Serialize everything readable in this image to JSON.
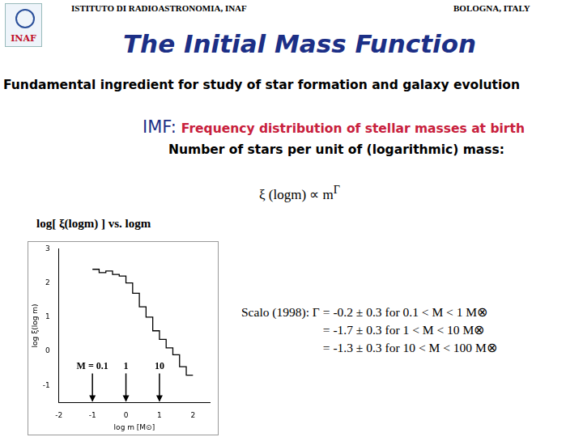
{
  "header": {
    "left": "ISTITUTO DI RADIOASTRONOMIA, INAF",
    "right": "BOLOGNA, ITALY",
    "logo": "INAF"
  },
  "title": "The Initial Mass Function",
  "subtitle": "Fundamental ingredient for study of star formation and galaxy evolution",
  "definition": {
    "term": "IMF:",
    "text": "Frequency distribution of stellar masses at birth",
    "detail": "Number of stars per unit of (logarithmic) mass:"
  },
  "formula": {
    "text": "ξ (logm) ∝ m",
    "superscript": "Γ"
  },
  "plot_caption": "log[ ξ(logm) ] vs. logm",
  "fit": {
    "lead": "Scalo (1998): Γ",
    "rows": [
      [
        "= -0.2 ± 0.3",
        "for 0.1 < M < 1 M⊗"
      ],
      [
        "= -1.7 ± 0.3",
        "for 1 < M < 10 M⊗"
      ],
      [
        "= -1.3 ± 0.3",
        "for 10 < M < 100 M⊗"
      ]
    ]
  },
  "chart_data": {
    "type": "histogram",
    "x_label": "log m [M⊙]",
    "y_label": "log ξ(log m)",
    "bins": [
      -1.0,
      -0.8,
      -0.6,
      -0.4,
      -0.2,
      0.0,
      0.2,
      0.4,
      0.6,
      0.8,
      1.0,
      1.2,
      1.4,
      1.6,
      1.8,
      2.0
    ],
    "counts": [
      2.4,
      2.3,
      2.35,
      2.25,
      2.2,
      2.0,
      1.7,
      1.3,
      1.0,
      0.6,
      0.35,
      0.1,
      -0.1,
      -0.45,
      -0.7
    ],
    "color": "#000000",
    "xlim": [
      -2,
      2.5
    ],
    "xticks": [
      -2,
      -1,
      0,
      1,
      2
    ],
    "ylim": [
      -1.5,
      3
    ],
    "yticks": [
      -1,
      0,
      1,
      2,
      3
    ],
    "grid": false,
    "annotations": [
      {
        "text": "M = 0.1",
        "x": -1
      },
      {
        "text": "1",
        "x": 0
      },
      {
        "text": "10",
        "x": 1
      }
    ]
  }
}
